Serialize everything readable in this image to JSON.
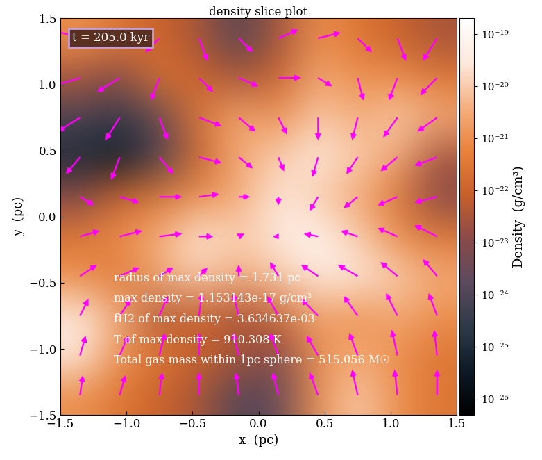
{
  "chart_data": {
    "type": "heatmap",
    "title": "density slice plot",
    "x_label": "x  (pc)",
    "y_label": "y  (pc)",
    "xlim": [
      -1.5,
      1.5
    ],
    "ylim": [
      -1.5,
      1.5
    ],
    "xticks": [
      {
        "value": -1.5,
        "label": "−1.5"
      },
      {
        "value": -1.0,
        "label": "−1.0"
      },
      {
        "value": -0.5,
        "label": "−0.5"
      },
      0.0,
      0.5,
      1.0,
      1.5
    ],
    "yticks": [
      {
        "value": -1.5,
        "label": "−1.5"
      },
      {
        "value": -1.0,
        "label": "−1.0"
      },
      {
        "value": -0.5,
        "label": "−0.5"
      },
      0.0,
      0.5,
      1.0,
      1.5
    ],
    "x": [
      -1.35,
      -1.05,
      -0.75,
      -0.45,
      -0.15,
      0.15,
      0.45,
      0.75,
      1.05,
      1.35
    ],
    "y": [
      1.35,
      1.05,
      0.75,
      0.45,
      0.15,
      -0.15,
      -0.45,
      -0.75,
      -1.05,
      -1.35
    ],
    "cells": [
      [
        1e-21,
        3e-22,
        1e-22,
        3e-23,
        1e-24,
        3e-23,
        1e-21,
        3e-22,
        1e-22,
        3e-23
      ],
      [
        3e-23,
        1e-23,
        3e-22,
        1e-22,
        3e-23,
        1e-22,
        3e-21,
        1e-21,
        1e-21,
        3e-22
      ],
      [
        1e-24,
        3e-25,
        3e-24,
        3e-22,
        3e-21,
        1e-21,
        1e-20,
        3e-21,
        1e-20,
        3e-21
      ],
      [
        1e-25,
        3e-26,
        1e-24,
        1e-22,
        3e-21,
        1e-20,
        3e-20,
        1e-20,
        3e-21,
        3e-23
      ],
      [
        1e-23,
        1e-22,
        3e-22,
        1e-21,
        3e-21,
        3e-20,
        1e-20,
        3e-21,
        3e-22,
        1e-23
      ],
      [
        3e-22,
        1e-21,
        3e-21,
        3e-20,
        1e-20,
        3e-20,
        1e-19,
        1e-20,
        1e-21,
        3e-22
      ],
      [
        1e-21,
        3e-22,
        3e-21,
        1e-20,
        3e-21,
        1e-20,
        3e-20,
        3e-20,
        1e-20,
        3e-21
      ],
      [
        3e-20,
        3e-21,
        3e-23,
        1e-22,
        3e-23,
        1e-22,
        3e-21,
        1e-21,
        3e-21,
        1e-21
      ],
      [
        3e-20,
        1e-21,
        3e-22,
        1e-22,
        3e-23,
        1e-23,
        1e-21,
        3e-21,
        1e-21,
        3e-22
      ],
      [
        1e-21,
        3e-22,
        1e-22,
        3e-23,
        1e-24,
        3e-24,
        1e-21,
        1e-20,
        1e-21,
        3e-22
      ]
    ],
    "colorbar": {
      "label": "Density  (g/cm³)",
      "log": true,
      "lim": [
        5e-27,
        2e-19
      ],
      "ticks": [
        {
          "value": 1e-19,
          "label": "10⁻¹⁹"
        },
        {
          "value": 1e-20,
          "label": "10⁻²⁰"
        },
        {
          "value": 1e-21,
          "label": "10⁻²¹"
        },
        {
          "value": 1e-22,
          "label": "10⁻²²"
        },
        {
          "value": 1e-23,
          "label": "10⁻²³"
        },
        {
          "value": 1e-24,
          "label": "10⁻²⁴"
        },
        {
          "value": 1e-25,
          "label": "10⁻²⁵"
        },
        {
          "value": 1e-26,
          "label": "10⁻²⁶"
        }
      ]
    },
    "vectors": {
      "color": "#ff00ff",
      "u": [
        [
          -1,
          -1,
          -0.5,
          0.3,
          0.5,
          0.7,
          0.8,
          0.5,
          0.3,
          -0.5
        ],
        [
          -1,
          -0.8,
          -0.3,
          0.5,
          0.7,
          0.8,
          0.5,
          0.2,
          -0.3,
          -0.6
        ],
        [
          -0.8,
          -0.5,
          0.3,
          0.8,
          0.6,
          0.3,
          0,
          -0.2,
          -0.5,
          -0.7
        ],
        [
          -0.5,
          -0.3,
          0.5,
          0.8,
          0.5,
          0.2,
          -0.2,
          -0.4,
          -0.6,
          -0.8
        ],
        [
          0.5,
          0.7,
          0.8,
          0.7,
          0.4,
          0,
          -0.3,
          -0.5,
          -0.7,
          -0.8
        ],
        [
          0.7,
          0.8,
          0.8,
          0.5,
          0.2,
          -0.2,
          -0.5,
          -0.6,
          -0.7,
          -0.8
        ],
        [
          0.6,
          0.7,
          0.5,
          0.3,
          0,
          -0.3,
          -0.6,
          -0.7,
          -0.6,
          -0.5
        ],
        [
          0.3,
          0.4,
          0.3,
          0.1,
          -0.2,
          -0.4,
          -0.6,
          -0.5,
          -0.4,
          -0.3
        ],
        [
          0.2,
          0.3,
          0.2,
          0,
          -0.2,
          -0.3,
          -0.4,
          -0.3,
          -0.2,
          -0.1
        ],
        [
          0.1,
          0.2,
          0.1,
          0,
          -0.1,
          -0.2,
          -0.3,
          -0.2,
          -0.1,
          0
        ]
      ],
      "v": [
        [
          0.3,
          0,
          -0.5,
          -0.8,
          -0.5,
          0.3,
          0.2,
          -0.5,
          -0.8,
          -0.8
        ],
        [
          -0.3,
          -0.5,
          -0.8,
          -0.5,
          -0.3,
          0,
          -0.3,
          -0.8,
          -0.8,
          -0.6
        ],
        [
          -0.5,
          -0.8,
          -0.8,
          -0.3,
          -0.5,
          -0.6,
          -0.8,
          -0.8,
          -0.7,
          -0.5
        ],
        [
          -0.6,
          -0.8,
          -0.6,
          -0.2,
          -0.4,
          -0.5,
          -0.7,
          -0.6,
          -0.5,
          -0.3
        ],
        [
          -0.3,
          -0.2,
          0,
          0.1,
          0,
          -0.3,
          -0.5,
          -0.4,
          -0.3,
          -0.2
        ],
        [
          0.2,
          0.2,
          0.1,
          0,
          0.1,
          0,
          0.1,
          0.2,
          0.3,
          0.4
        ],
        [
          0.4,
          0.3,
          0.3,
          0.3,
          0.4,
          0.5,
          0.4,
          0.4,
          0.5,
          0.6
        ],
        [
          0.6,
          0.6,
          0.7,
          0.8,
          0.8,
          0.7,
          0.6,
          0.7,
          0.8,
          0.8
        ],
        [
          0.7,
          0.7,
          0.8,
          0.8,
          0.8,
          0.8,
          0.7,
          0.8,
          0.9,
          0.9
        ],
        [
          0.7,
          0.7,
          0.8,
          0.8,
          0.8,
          0.8,
          0.8,
          0.9,
          0.9,
          0.9
        ]
      ]
    },
    "time_label": "t = 205.0 kyr",
    "annotations": [
      "radius of max density = 1.731 pc",
      "max density = 1.153143e-17 g/cm³",
      "fH2 of max density = 3.634637e-03",
      "T of max density = 910.308 K",
      "Total gas mass within 1pc sphere = 515.056 M☉"
    ]
  }
}
